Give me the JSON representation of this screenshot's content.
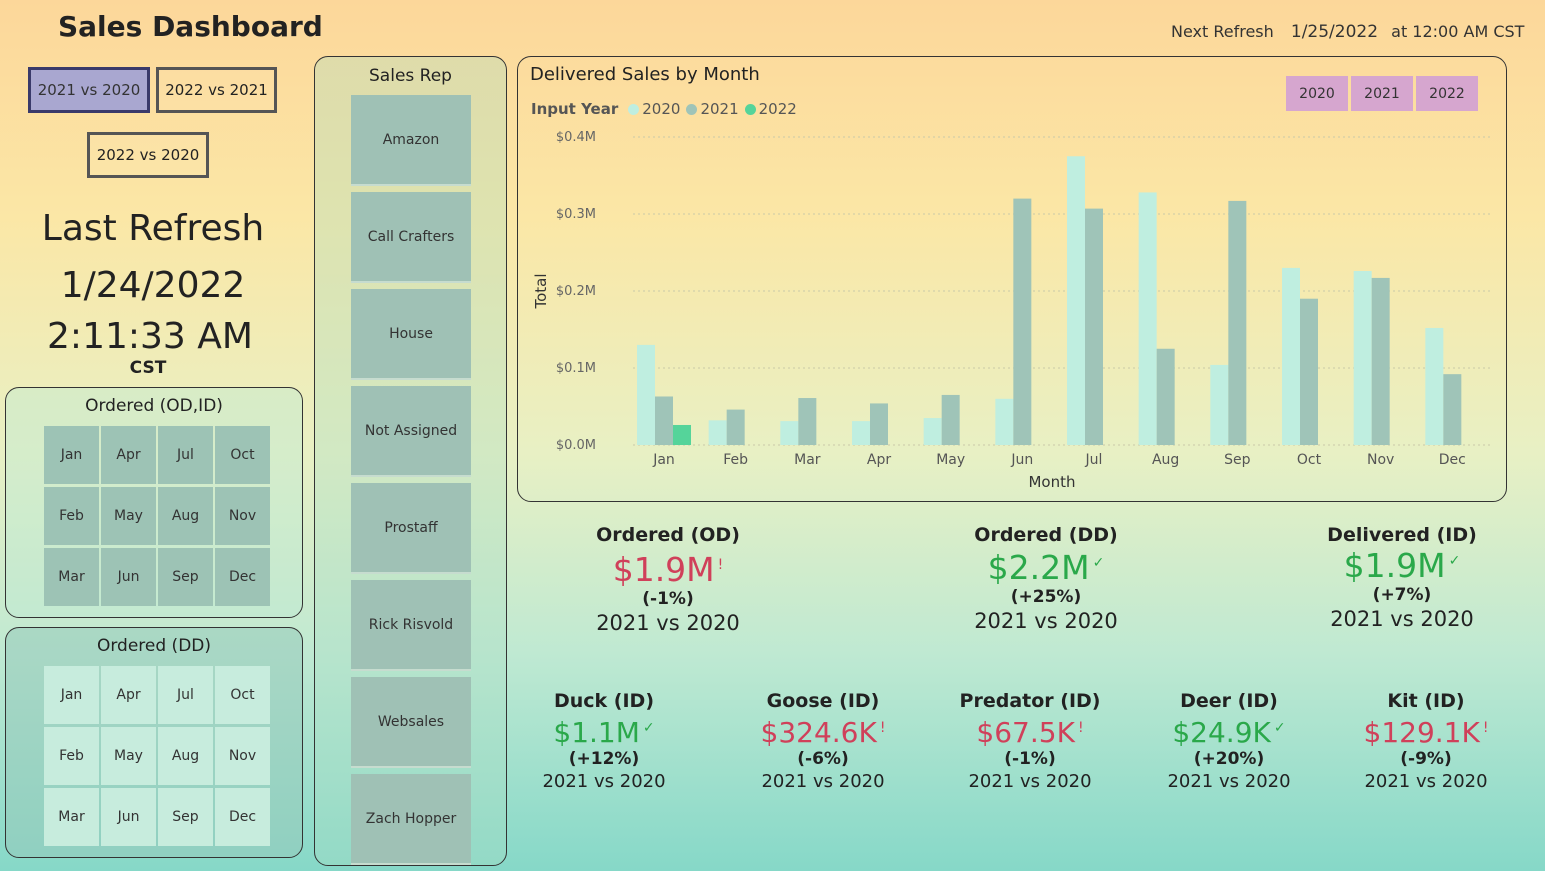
{
  "title": "Sales Dashboard",
  "next_refresh": {
    "label": "Next Refresh",
    "date": "1/25/2022",
    "time": "at 12:00 AM CST"
  },
  "compare_buttons": [
    "2021 vs 2020",
    "2022 vs 2021",
    "2022 vs 2020"
  ],
  "active_compare": "2021 vs 2020",
  "last_refresh": {
    "label": "Last Refresh",
    "date": "1/24/2022",
    "time": "2:11:33 AM",
    "tz": "CST"
  },
  "ordered_od_panel": {
    "title": "Ordered (OD,ID)",
    "months": [
      "Jan",
      "Apr",
      "Jul",
      "Oct",
      "Feb",
      "May",
      "Aug",
      "Nov",
      "Mar",
      "Jun",
      "Sep",
      "Dec"
    ]
  },
  "ordered_dd_panel": {
    "title": "Ordered (DD)",
    "months": [
      "Jan",
      "Apr",
      "Jul",
      "Oct",
      "Feb",
      "May",
      "Aug",
      "Nov",
      "Mar",
      "Jun",
      "Sep",
      "Dec"
    ]
  },
  "sales_rep": {
    "title": "Sales Rep",
    "items": [
      "Amazon",
      "Call Crafters",
      "House",
      "Not Assigned",
      "Prostaff",
      "Rick Risvold",
      "Websales",
      "Zach Hopper"
    ]
  },
  "year_buttons": [
    "2020",
    "2021",
    "2022"
  ],
  "colors": {
    "y2020": "#bfeee0",
    "y2021": "#9fc4b8",
    "y2022": "#55d49a",
    "red": "#d0405a",
    "green": "#2aa84a"
  },
  "chart_data": {
    "type": "bar",
    "title": "Delivered Sales by Month",
    "legend_title": "Input Year",
    "xlabel": "Month",
    "ylabel": "Total",
    "categories": [
      "Jan",
      "Feb",
      "Mar",
      "Apr",
      "May",
      "Jun",
      "Jul",
      "Aug",
      "Sep",
      "Oct",
      "Nov",
      "Dec"
    ],
    "series": [
      {
        "name": "2020",
        "values": [
          0.13,
          0.032,
          0.031,
          0.031,
          0.035,
          0.06,
          0.375,
          0.328,
          0.104,
          0.23,
          0.226,
          0.152
        ]
      },
      {
        "name": "2021",
        "values": [
          0.063,
          0.046,
          0.061,
          0.054,
          0.065,
          0.32,
          0.307,
          0.125,
          0.317,
          0.19,
          0.217,
          0.092
        ]
      },
      {
        "name": "2022",
        "values": [
          0.026,
          null,
          null,
          null,
          null,
          null,
          null,
          null,
          null,
          null,
          null,
          null
        ]
      }
    ],
    "ylim": [
      0,
      0.4
    ],
    "yticks": [
      "$0.0M",
      "$0.1M",
      "$0.2M",
      "$0.3M",
      "$0.4M"
    ],
    "grid": true,
    "legend_position": "top-left"
  },
  "kpis_top": [
    {
      "title": "Ordered (OD)",
      "value": "$1.9M",
      "status": "down",
      "pct": "(-1%)",
      "compare": "2021 vs 2020"
    },
    {
      "title": "Ordered (DD)",
      "value": "$2.2M",
      "status": "up",
      "pct": "(+25%)",
      "compare": "2021 vs 2020"
    },
    {
      "title": "Delivered (ID)",
      "value": "$1.9M",
      "status": "up",
      "pct": "(+7%)",
      "compare": "2021 vs 2020"
    }
  ],
  "kpis_bottom": [
    {
      "title": "Duck (ID)",
      "value": "$1.1M",
      "status": "up",
      "pct": "(+12%)",
      "compare": "2021 vs 2020"
    },
    {
      "title": "Goose (ID)",
      "value": "$324.6K",
      "status": "down",
      "pct": "(-6%)",
      "compare": "2021 vs 2020"
    },
    {
      "title": "Predator (ID)",
      "value": "$67.5K",
      "status": "down",
      "pct": "(-1%)",
      "compare": "2021 vs 2020"
    },
    {
      "title": "Deer (ID)",
      "value": "$24.9K",
      "status": "up",
      "pct": "(+20%)",
      "compare": "2021 vs 2020"
    },
    {
      "title": "Kit (ID)",
      "value": "$129.1K",
      "status": "down",
      "pct": "(-9%)",
      "compare": "2021 vs 2020"
    }
  ]
}
